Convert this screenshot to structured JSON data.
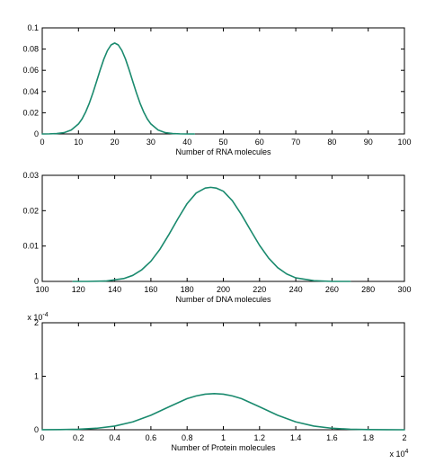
{
  "chart_data": [
    {
      "type": "line",
      "xlabel": "Number of RNA molecules",
      "ylabel": "",
      "xlim": [
        0,
        100
      ],
      "ylim": [
        0,
        0.1
      ],
      "xticks": [
        "0",
        "10",
        "20",
        "30",
        "40",
        "50",
        "60",
        "70",
        "80",
        "90",
        "100"
      ],
      "yticks": [
        "0",
        "0.02",
        "0.04",
        "0.06",
        "0.08",
        "0.1"
      ],
      "color": "#1a8a6e",
      "series": [
        {
          "x": [
            0,
            2,
            4,
            6,
            8,
            10,
            11,
            12,
            13,
            14,
            15,
            16,
            17,
            18,
            19,
            20,
            21,
            22,
            23,
            24,
            25,
            26,
            27,
            28,
            29,
            30,
            32,
            34,
            36,
            38,
            40,
            42
          ],
          "values": [
            0.0,
            0.0001,
            0.0004,
            0.0012,
            0.0037,
            0.0094,
            0.0142,
            0.0208,
            0.029,
            0.0388,
            0.0495,
            0.0604,
            0.0705,
            0.0786,
            0.0839,
            0.0857,
            0.0839,
            0.0786,
            0.0705,
            0.0604,
            0.0495,
            0.0388,
            0.029,
            0.0208,
            0.0142,
            0.0094,
            0.0037,
            0.0012,
            0.0004,
            0.0001,
            0.0,
            0.0
          ]
        }
      ]
    },
    {
      "type": "line",
      "xlabel": "Number of DNA molecules",
      "ylabel": "",
      "xlim": [
        100,
        300
      ],
      "ylim": [
        0,
        0.03
      ],
      "xticks": [
        "100",
        "120",
        "140",
        "160",
        "180",
        "200",
        "220",
        "240",
        "260",
        "280",
        "300"
      ],
      "yticks": [
        "0",
        "0.01",
        "0.02",
        "0.03"
      ],
      "color": "#1a8a6e",
      "series": [
        {
          "x": [
            117,
            125,
            135,
            145,
            150,
            155,
            160,
            165,
            170,
            175,
            180,
            185,
            190,
            193,
            196,
            200,
            205,
            210,
            215,
            220,
            225,
            230,
            235,
            240,
            250,
            260,
            270
          ],
          "values": [
            0.0,
            0.0,
            0.0001,
            0.0008,
            0.0017,
            0.0033,
            0.0057,
            0.0091,
            0.0133,
            0.0178,
            0.022,
            0.025,
            0.0264,
            0.0266,
            0.0264,
            0.0255,
            0.0228,
            0.0189,
            0.0145,
            0.0102,
            0.0066,
            0.0039,
            0.0021,
            0.001,
            0.0002,
            0.0,
            0.0
          ]
        }
      ]
    },
    {
      "type": "line",
      "xlabel": "Number of Protein molecules",
      "ylabel": "",
      "xlim": [
        0,
        2
      ],
      "ylim": [
        0,
        2
      ],
      "xticks": [
        "0",
        "0.2",
        "0.4",
        "0.6",
        "0.8",
        "1",
        "1.2",
        "1.4",
        "1.6",
        "1.8",
        "2"
      ],
      "yticks": [
        "0",
        "1",
        "2"
      ],
      "y_multiplier_base": "x 10",
      "y_multiplier_exp": "-4",
      "x_multiplier_base": "x 10",
      "x_multiplier_exp": "4",
      "color": "#1a8a6e",
      "series": [
        {
          "x": [
            0,
            0.1,
            0.2,
            0.3,
            0.4,
            0.5,
            0.6,
            0.7,
            0.8,
            0.85,
            0.9,
            0.95,
            1.0,
            1.05,
            1.1,
            1.2,
            1.3,
            1.4,
            1.5,
            1.6,
            1.7,
            1.8,
            1.9,
            2.0
          ],
          "values": [
            0.0007,
            0.0028,
            0.0095,
            0.0276,
            0.0688,
            0.1475,
            0.2715,
            0.4289,
            0.5817,
            0.6324,
            0.6649,
            0.675,
            0.6649,
            0.6324,
            0.5817,
            0.4289,
            0.2715,
            0.1475,
            0.0688,
            0.0276,
            0.0095,
            0.0028,
            0.0007,
            0.0001
          ]
        }
      ]
    }
  ]
}
